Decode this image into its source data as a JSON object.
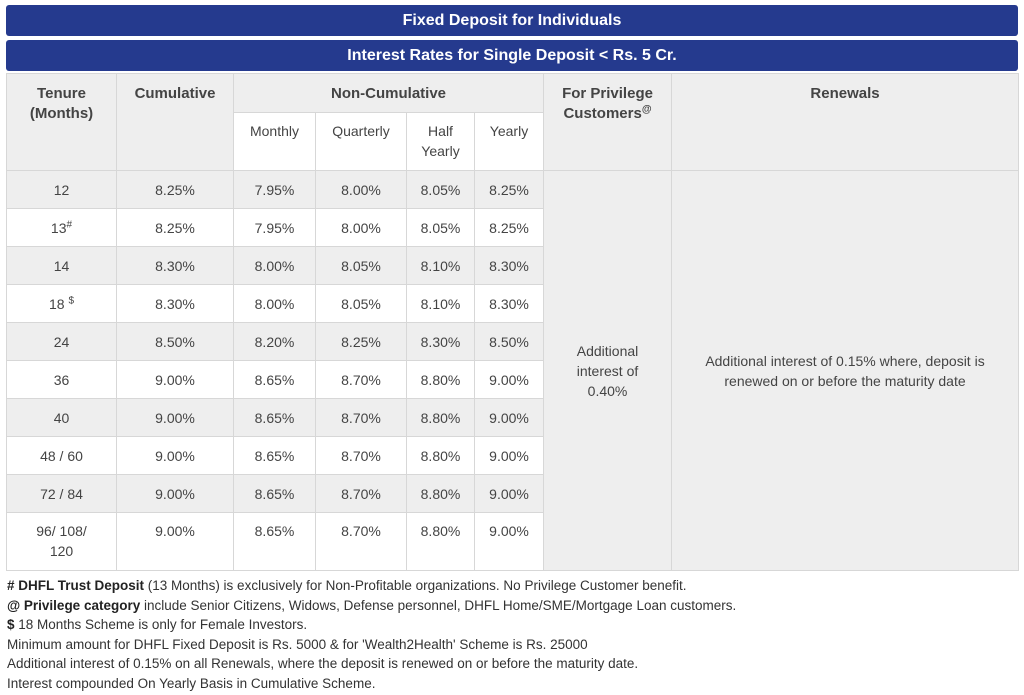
{
  "banner": {
    "title": "Fixed Deposit for Individuals",
    "subtitle": "Interest Rates for Single Deposit < Rs. 5 Cr."
  },
  "table": {
    "headers": {
      "tenure": "Tenure (Months)",
      "cumulative": "Cumulative",
      "non_cumulative": "Non-Cumulative",
      "privilege": "For Privilege Customers",
      "privilege_sup": "@",
      "renewals": "Renewals"
    },
    "sub_headers": {
      "monthly": "Monthly",
      "quarterly": "Quarterly",
      "half_yearly": "Half Yearly",
      "yearly": "Yearly"
    },
    "rows": [
      {
        "tenure": "12",
        "mark": "",
        "cumulative": "8.25%",
        "monthly": "7.95%",
        "quarterly": "8.00%",
        "half_yearly": "8.05%",
        "yearly": "8.25%"
      },
      {
        "tenure": "13",
        "mark": "#",
        "cumulative": "8.25%",
        "monthly": "7.95%",
        "quarterly": "8.00%",
        "half_yearly": "8.05%",
        "yearly": "8.25%"
      },
      {
        "tenure": "14",
        "mark": "",
        "cumulative": "8.30%",
        "monthly": "8.00%",
        "quarterly": "8.05%",
        "half_yearly": "8.10%",
        "yearly": "8.30%"
      },
      {
        "tenure": "18",
        "mark": "$",
        "cumulative": "8.30%",
        "monthly": "8.00%",
        "quarterly": "8.05%",
        "half_yearly": "8.10%",
        "yearly": "8.30%"
      },
      {
        "tenure": "24",
        "mark": "",
        "cumulative": "8.50%",
        "monthly": "8.20%",
        "quarterly": "8.25%",
        "half_yearly": "8.30%",
        "yearly": "8.50%"
      },
      {
        "tenure": "36",
        "mark": "",
        "cumulative": "9.00%",
        "monthly": "8.65%",
        "quarterly": "8.70%",
        "half_yearly": "8.80%",
        "yearly": "9.00%"
      },
      {
        "tenure": "40",
        "mark": "",
        "cumulative": "9.00%",
        "monthly": "8.65%",
        "quarterly": "8.70%",
        "half_yearly": "8.80%",
        "yearly": "9.00%"
      },
      {
        "tenure": "48 / 60",
        "mark": "",
        "cumulative": "9.00%",
        "monthly": "8.65%",
        "quarterly": "8.70%",
        "half_yearly": "8.80%",
        "yearly": "9.00%"
      },
      {
        "tenure": "72 / 84",
        "mark": "",
        "cumulative": "9.00%",
        "monthly": "8.65%",
        "quarterly": "8.70%",
        "half_yearly": "8.80%",
        "yearly": "9.00%"
      },
      {
        "tenure": "96/ 108/ 120",
        "mark": "",
        "cumulative": "9.00%",
        "monthly": "8.65%",
        "quarterly": "8.70%",
        "half_yearly": "8.80%",
        "yearly": "9.00%"
      }
    ],
    "privilege_text": "Additional interest of 0.40%",
    "renewals_text": "Additional interest of 0.15% where, deposit is renewed on or before the maturity date"
  },
  "notes": [
    {
      "bold": "# DHFL Trust Deposit",
      "text": " (13 Months) is exclusively for Non-Profitable organizations. No Privilege Customer benefit."
    },
    {
      "bold": "@ Privilege category",
      "text": " include Senior Citizens, Widows, Defense personnel, DHFL Home/SME/Mortgage Loan customers."
    },
    {
      "bold": "$",
      "text": " 18 Months Scheme is only for Female Investors."
    },
    {
      "bold": "",
      "text": "Minimum amount for DHFL Fixed Deposit is Rs. 5000 & for 'Wealth2Health' Scheme is Rs. 25000"
    },
    {
      "bold": "",
      "text": "Additional interest of 0.15% on all Renewals, where the deposit is renewed on or before the maturity date."
    },
    {
      "bold": "",
      "text": "Interest compounded On Yearly Basis in Cumulative Scheme."
    }
  ]
}
